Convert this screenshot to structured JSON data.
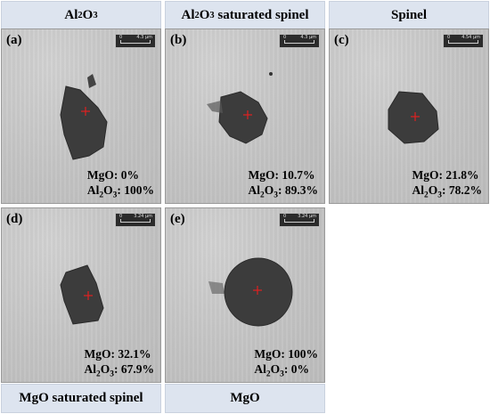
{
  "panels": [
    {
      "label": "(a)",
      "title_prefix": "Al",
      "title_sub1": "2",
      "title_mid": "O",
      "title_sub2": "3",
      "title_suffix": "",
      "scale": "4.3 µm",
      "mgo": "MgO: 0%",
      "al2o3_value": "100%"
    },
    {
      "label": "(b)",
      "title_prefix": "Al",
      "title_sub1": "2",
      "title_mid": "O",
      "title_sub2": "3",
      "title_suffix": " saturated spinel",
      "scale": "4.3 µm",
      "mgo": "MgO: 10.7%",
      "al2o3_value": "89.3%"
    },
    {
      "label": "(c)",
      "title": "Spinel",
      "scale": "4.54 µm",
      "mgo": "MgO: 21.8%",
      "al2o3_value": "78.2%"
    },
    {
      "label": "(d)",
      "title": "MgO saturated spinel",
      "scale": "3.24 µm",
      "mgo": "MgO: 32.1%",
      "al2o3_value": "67.9%"
    },
    {
      "label": "(e)",
      "title": "MgO",
      "scale": "3.24 µm",
      "mgo": "MgO: 100%",
      "al2o3_value": "0%"
    }
  ],
  "scale_zero": "0",
  "al2o3": {
    "a": "Al",
    "s1": "2",
    "o": "O",
    "s2": "3",
    "colon": ": "
  },
  "colors": {
    "banner": "#dde4ef",
    "particle": "#3c3c3c",
    "marker": "#e02020"
  }
}
